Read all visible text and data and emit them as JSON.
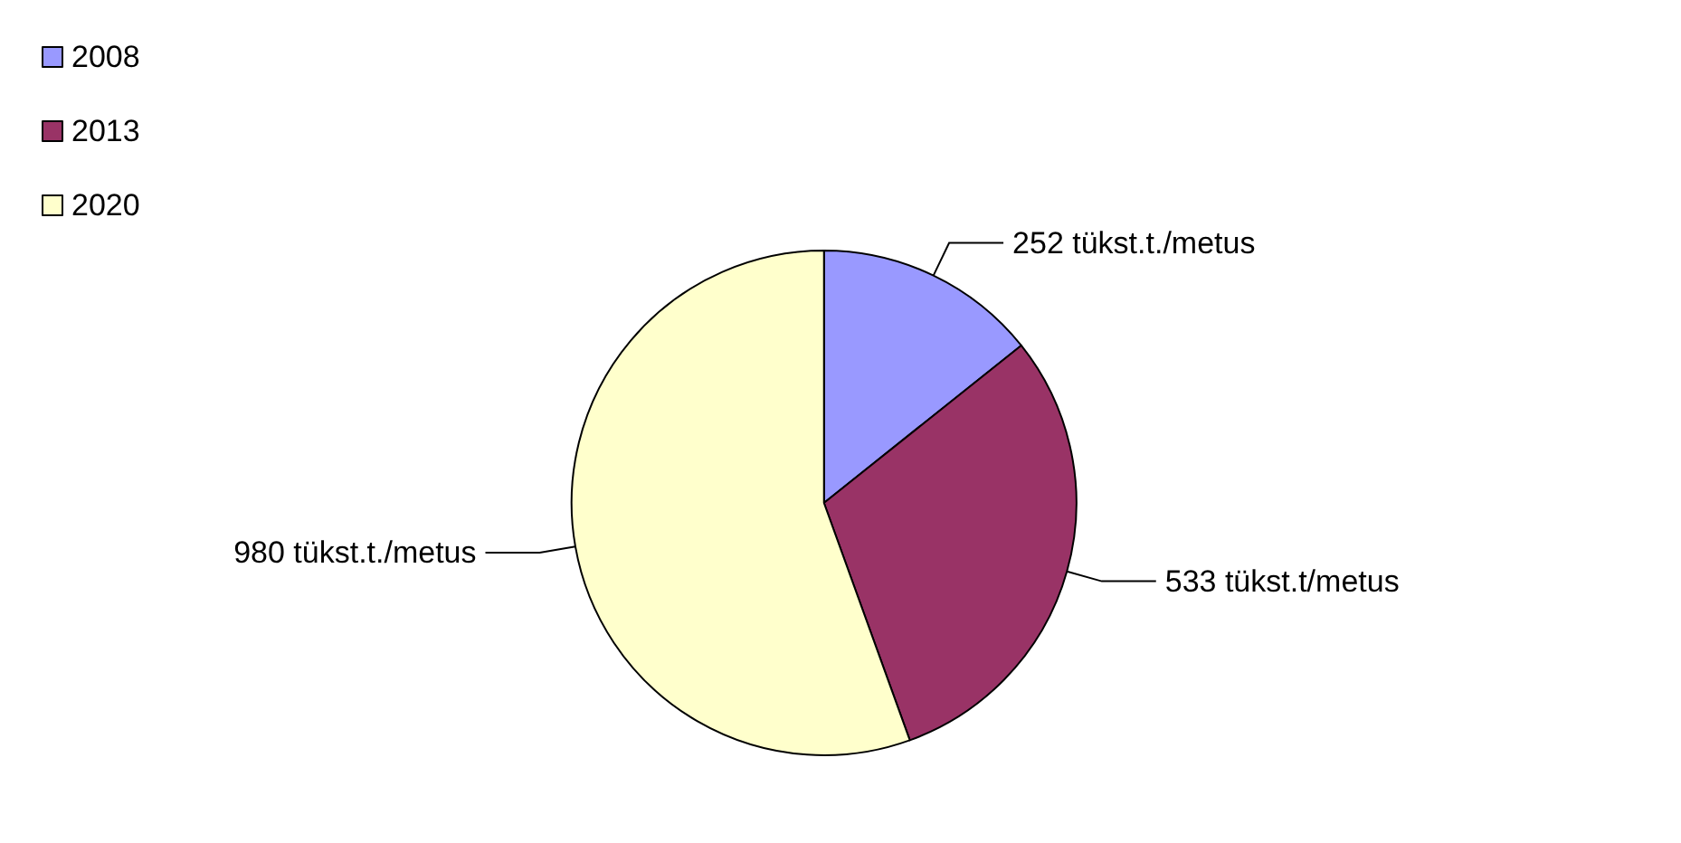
{
  "chart_data": {
    "type": "pie",
    "categories": [
      "2008",
      "2013",
      "2020"
    ],
    "values": [
      252,
      533,
      980
    ],
    "colors": [
      "#9999ff",
      "#993366",
      "#ffffcc"
    ],
    "value_labels": [
      "252 tükst.t./metus",
      "533 tükst.t/metus",
      "980 tükst.t./metus"
    ],
    "legend": "top left"
  }
}
